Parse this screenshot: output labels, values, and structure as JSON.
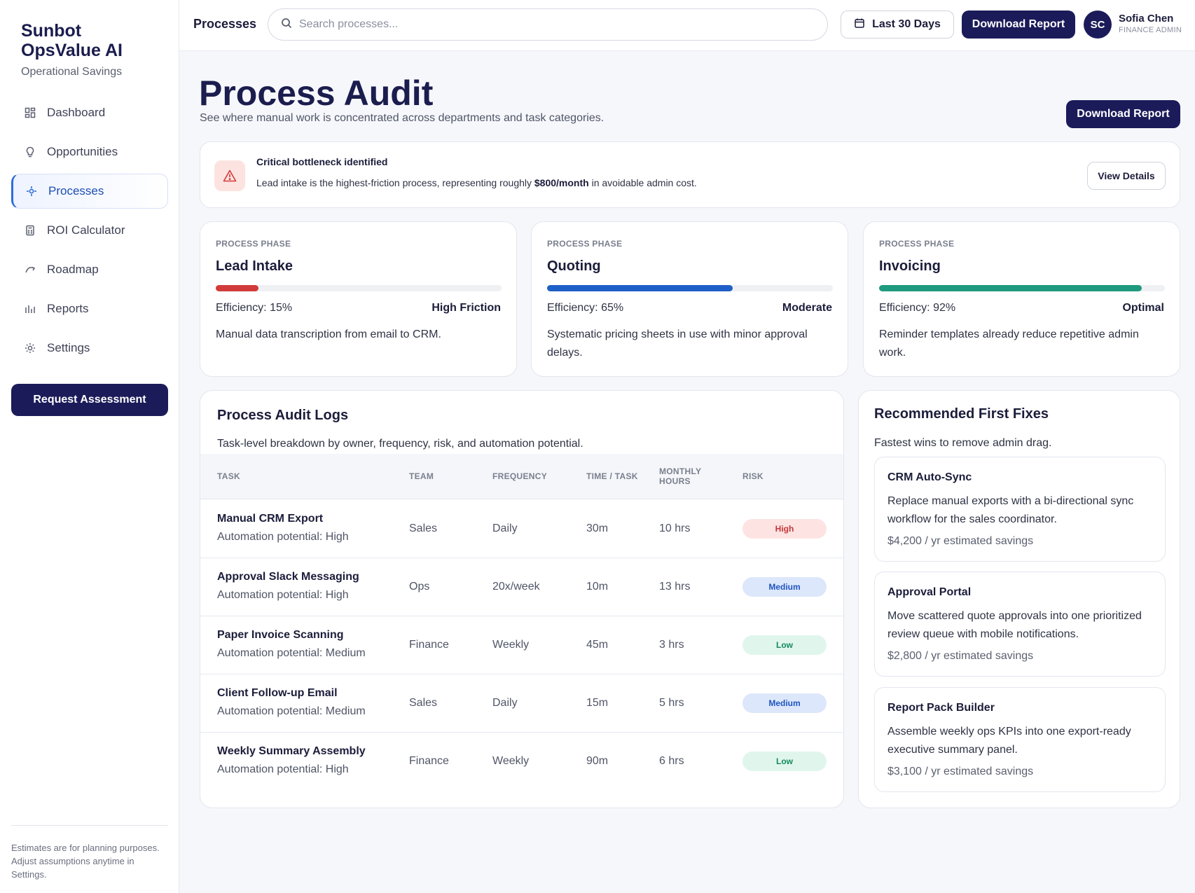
{
  "brand": {
    "name": "Sunbot OpsValue AI",
    "tagline": "Operational Savings"
  },
  "sidebar": {
    "items": [
      {
        "label": "Dashboard",
        "icon": "dashboard-icon"
      },
      {
        "label": "Opportunities",
        "icon": "lightbulb-icon"
      },
      {
        "label": "Processes",
        "icon": "process-icon",
        "active": true
      },
      {
        "label": "ROI Calculator",
        "icon": "calculator-icon"
      },
      {
        "label": "Roadmap",
        "icon": "roadmap-icon"
      },
      {
        "label": "Reports",
        "icon": "reports-icon"
      },
      {
        "label": "Settings",
        "icon": "settings-icon"
      }
    ],
    "cta_label": "Request Assessment",
    "footer_note": "Estimates are for planning purposes. Adjust assumptions anytime in Settings."
  },
  "topbar": {
    "title": "Processes",
    "search_placeholder": "Search processes...",
    "date_range": "Last 30 Days",
    "download_label": "Download Report",
    "user": {
      "initials": "SC",
      "name": "Sofia Chen",
      "role": "FINANCE ADMIN"
    }
  },
  "header": {
    "title": "Process Audit",
    "subtitle": "See where manual work is concentrated across departments and task categories.",
    "download_label": "Download Report"
  },
  "alert": {
    "title": "Critical bottleneck identified",
    "text_before": "Lead intake is the highest-friction process, representing roughly ",
    "amount": "$800/month",
    "text_after": " in avoidable admin cost.",
    "button_label": "View Details"
  },
  "phases": [
    {
      "kicker": "PROCESS PHASE",
      "name": "Lead Intake",
      "efficiency_label": "Efficiency: 15%",
      "efficiency": 15,
      "status": "High Friction",
      "description": "Manual data transcription from email to CRM.",
      "color": "#d23b3b"
    },
    {
      "kicker": "PROCESS PHASE",
      "name": "Quoting",
      "efficiency_label": "Efficiency: 65%",
      "efficiency": 65,
      "status": "Moderate",
      "description": "Systematic pricing sheets in use with minor approval delays.",
      "color": "#1f5fc8"
    },
    {
      "kicker": "PROCESS PHASE",
      "name": "Invoicing",
      "efficiency_label": "Efficiency: 92%",
      "efficiency": 92,
      "status": "Optimal",
      "description": "Reminder templates already reduce repetitive admin work.",
      "color": "#1f9a7e"
    }
  ],
  "logs": {
    "title": "Process Audit Logs",
    "subtitle": "Task-level breakdown by owner, frequency, risk, and automation potential.",
    "columns": {
      "task": "TASK",
      "team": "TEAM",
      "frequency": "FREQUENCY",
      "time": "TIME / TASK",
      "monthly_1": "MONTHLY",
      "monthly_2": "HOURS",
      "risk": "RISK"
    },
    "rows": [
      {
        "task": "Manual CRM Export",
        "potential": "Automation potential: High",
        "team": "Sales",
        "frequency": "Daily",
        "time": "30m",
        "hours": "10 hrs",
        "risk": "High"
      },
      {
        "task": "Approval Slack Messaging",
        "potential": "Automation potential: High",
        "team": "Ops",
        "frequency": "20x/week",
        "time": "10m",
        "hours": "13 hrs",
        "risk": "Medium"
      },
      {
        "task": "Paper Invoice Scanning",
        "potential": "Automation potential: Medium",
        "team": "Finance",
        "frequency": "Weekly",
        "time": "45m",
        "hours": "3 hrs",
        "risk": "Low"
      },
      {
        "task": "Client Follow-up Email",
        "potential": "Automation potential: Medium",
        "team": "Sales",
        "frequency": "Daily",
        "time": "15m",
        "hours": "5 hrs",
        "risk": "Medium"
      },
      {
        "task": "Weekly Summary Assembly",
        "potential": "Automation potential: High",
        "team": "Finance",
        "frequency": "Weekly",
        "time": "90m",
        "hours": "6 hrs",
        "risk": "Low"
      }
    ]
  },
  "fixes": {
    "title": "Recommended First Fixes",
    "subtitle": "Fastest wins to remove admin drag.",
    "items": [
      {
        "title": "CRM Auto-Sync",
        "description": "Replace manual exports with a bi-directional sync workflow for the sales coordinator.",
        "savings": "$4,200 / yr estimated savings"
      },
      {
        "title": "Approval Portal",
        "description": "Move scattered quote approvals into one prioritized review queue with mobile notifications.",
        "savings": "$2,800 / yr estimated savings"
      },
      {
        "title": "Report Pack Builder",
        "description": "Assemble weekly ops KPIs into one export-ready executive summary panel.",
        "savings": "$3,100 / yr estimated savings"
      }
    ]
  },
  "risk_colors": {
    "High": {
      "bg": "#fde4e2",
      "fg": "#c2363a"
    },
    "Medium": {
      "bg": "#dde7fb",
      "fg": "#1f55c0"
    },
    "Low": {
      "bg": "#e0f6ec",
      "fg": "#168a5d"
    }
  }
}
